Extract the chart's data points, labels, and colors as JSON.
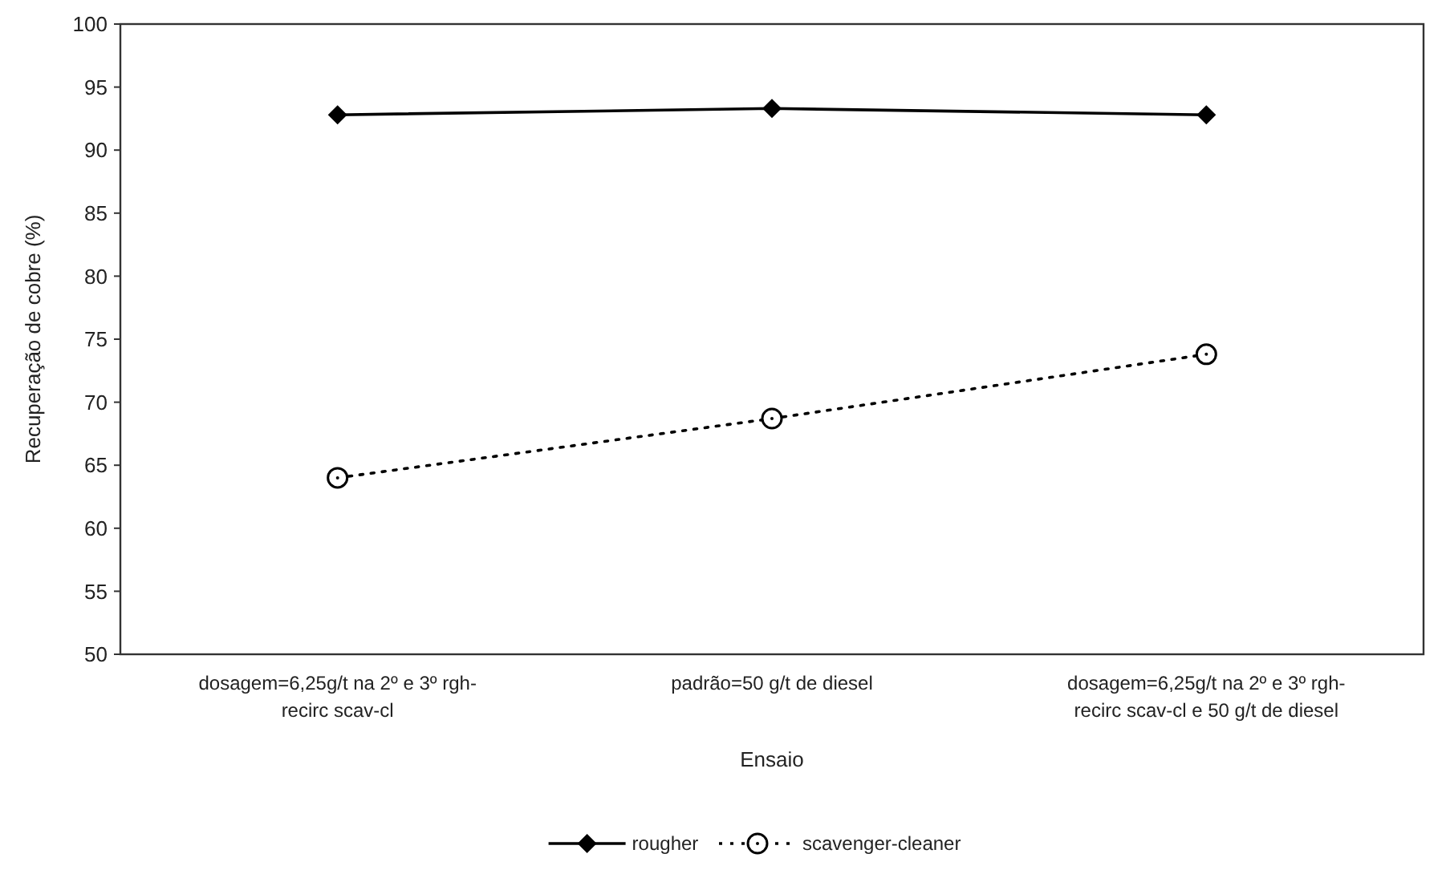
{
  "chart_data": {
    "type": "line",
    "xlabel": "Ensaio",
    "ylabel": "Recuperação de cobre (%)",
    "categories": [
      "dosagem=6,25g/t na 2º e 3º rgh-recirc scav-cl",
      "padrão=50 g/t de diesel",
      "dosagem=6,25g/t na 2º e 3º rgh-recirc scav-cl e 50 g/t de diesel"
    ],
    "series": [
      {
        "name": "rougher",
        "color": "#000000",
        "values": [
          92.8,
          93.3,
          92.8
        ],
        "marker": "diamond",
        "line_style": "solid"
      },
      {
        "name": "scavenger-cleaner",
        "color": "#000000",
        "values": [
          64.0,
          68.7,
          73.8
        ],
        "marker": "circle",
        "line_style": "dotted"
      }
    ],
    "ylim": [
      50,
      100
    ],
    "yticks": [
      50,
      55,
      60,
      65,
      70,
      75,
      80,
      85,
      90,
      95,
      100
    ],
    "grid": false,
    "legend": "bottom"
  }
}
